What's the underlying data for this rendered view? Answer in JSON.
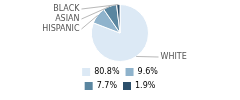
{
  "chart_data": {
    "type": "pie",
    "categories": [
      "WHITE",
      "HISPANIC",
      "ASIAN",
      "BLACK"
    ],
    "values": [
      80.8,
      9.6,
      7.7,
      1.9
    ],
    "value_labels": [
      "80.8%",
      "9.6%",
      "7.7%",
      "1.9%"
    ],
    "colors": [
      "#dce9f5",
      "#8fb3cc",
      "#5a86a0",
      "#2c4f6b"
    ],
    "legend": "bottom"
  }
}
